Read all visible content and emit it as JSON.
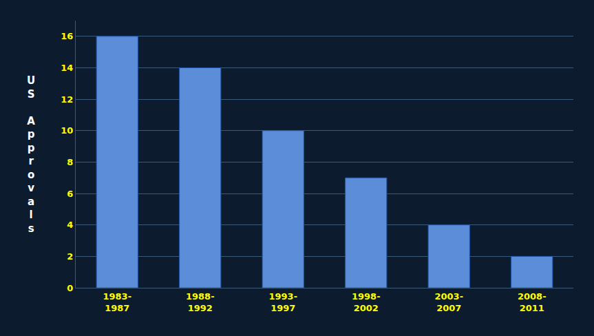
{
  "chart_data": {
    "type": "bar",
    "categories": [
      "1983-\n1987",
      "1988-\n1992",
      "1993-\n1997",
      "1998-\n2002",
      "2003-\n2007",
      "2008-\n2011"
    ],
    "values": [
      16,
      14,
      10,
      7,
      4,
      2
    ],
    "color": "#5b8dd9",
    "ylabel": "U\nS\n\nA\np\np\nr\no\nv\na\nl\ns",
    "ylim": [
      0,
      17
    ],
    "yticks": [
      0,
      2,
      4,
      6,
      8,
      10,
      12,
      14,
      16
    ],
    "grid": true
  }
}
